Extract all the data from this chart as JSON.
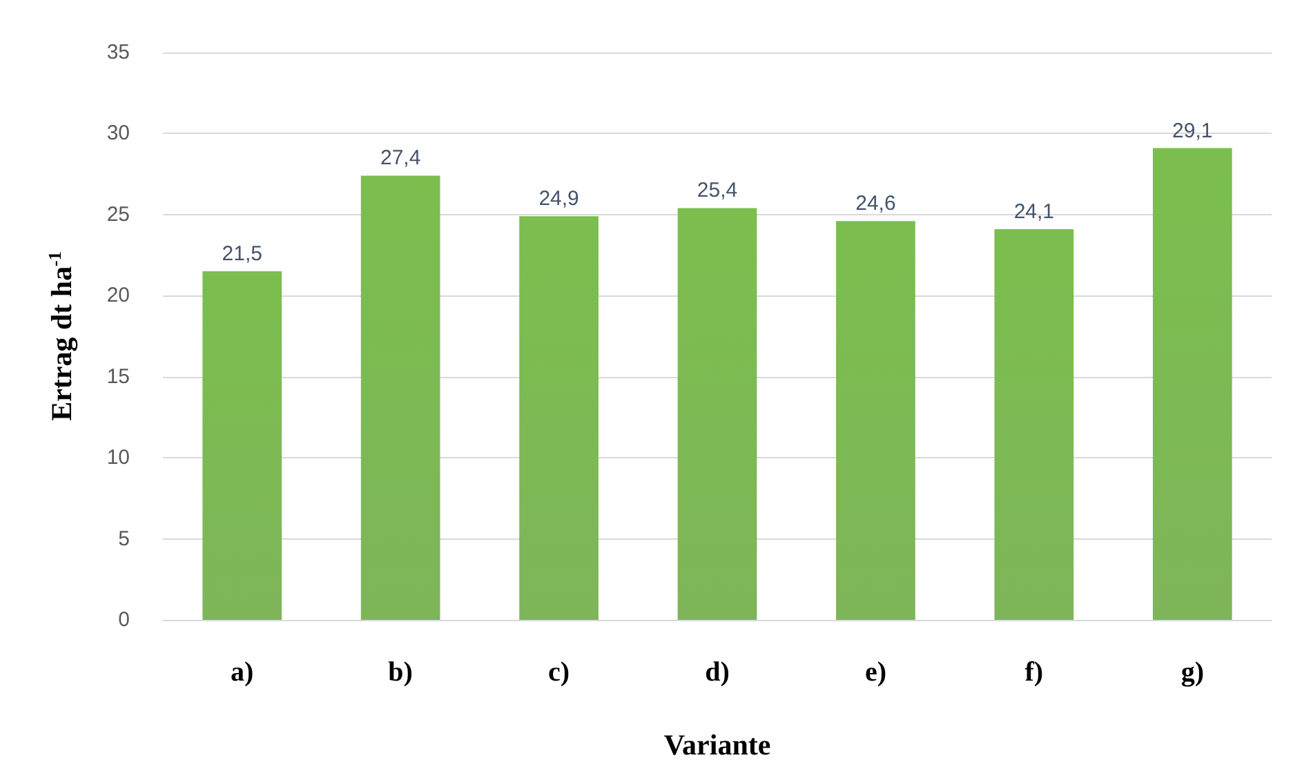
{
  "chart_data": {
    "type": "bar",
    "xlabel": "Variante",
    "ylabel": "Ertrag dt ha$^{-1}$",
    "categories": [
      "a)",
      "b)",
      "c)",
      "d)",
      "e)",
      "f)",
      "g)"
    ],
    "values": [
      21.5,
      27.4,
      24.9,
      25.4,
      24.6,
      24.1,
      29.1
    ],
    "value_labels": [
      "21,5",
      "27,4",
      "24,9",
      "25,4",
      "24,6",
      "24,1",
      "29,1"
    ],
    "color": "#70ad47",
    "ylim": [
      0,
      35
    ],
    "yticks": [
      0,
      5,
      10,
      15,
      20,
      25,
      30,
      35
    ],
    "grid": "y"
  }
}
